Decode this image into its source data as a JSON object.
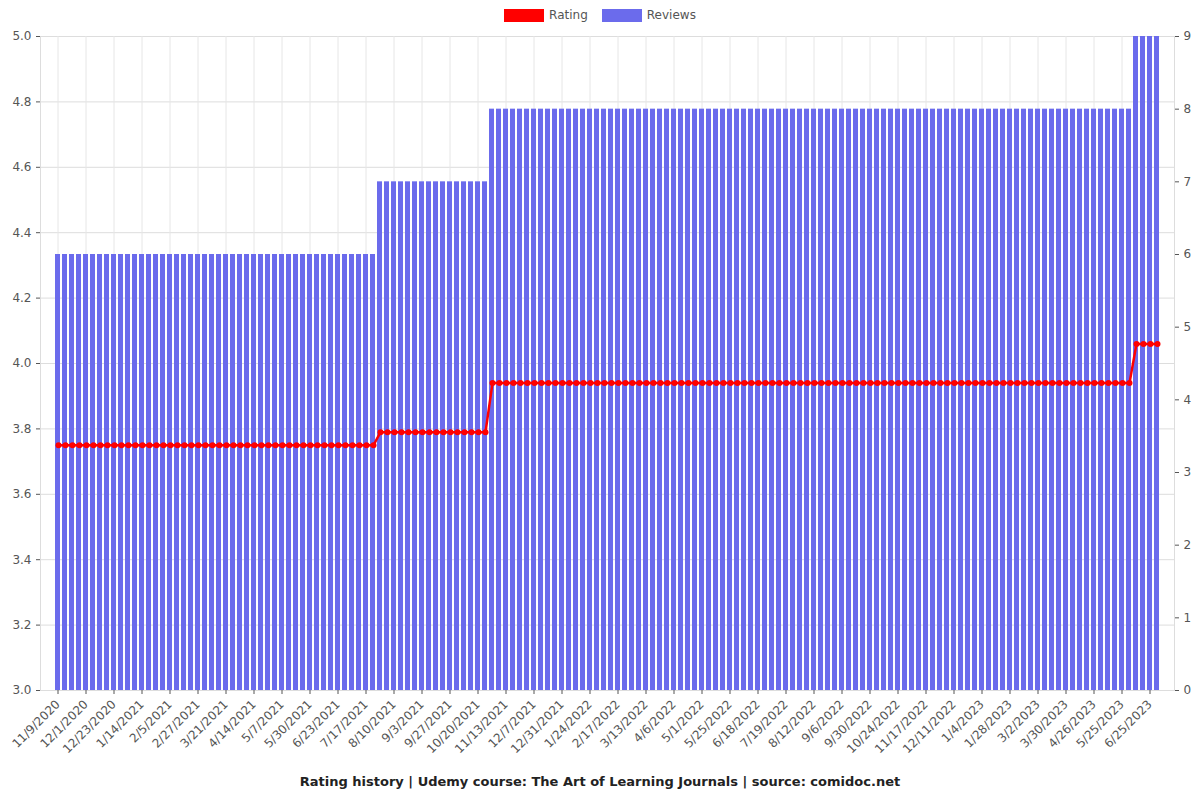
{
  "chart_data": {
    "type": "bar",
    "title": "Rating history | Udemy course: The Art of Learning Journals | source: comidoc.net",
    "categories": [
      "11/9/2020",
      null,
      null,
      null,
      "12/1/2020",
      null,
      null,
      null,
      "12/23/2020",
      null,
      null,
      null,
      "1/14/2021",
      null,
      null,
      null,
      "2/5/2021",
      null,
      null,
      null,
      "2/27/2021",
      null,
      null,
      null,
      "3/21/2021",
      null,
      null,
      null,
      "4/14/2021",
      null,
      null,
      null,
      "5/7/2021",
      null,
      null,
      null,
      "5/30/2021",
      null,
      null,
      null,
      "6/23/2021",
      null,
      null,
      null,
      "7/17/2021",
      null,
      null,
      null,
      "8/10/2021",
      null,
      null,
      null,
      "9/3/2021",
      null,
      null,
      null,
      "9/27/2021",
      null,
      null,
      null,
      "10/20/2021",
      null,
      null,
      null,
      "11/13/2021",
      null,
      null,
      null,
      "12/7/2021",
      null,
      null,
      null,
      "12/31/2021",
      null,
      null,
      null,
      "1/24/2022",
      null,
      null,
      null,
      "2/17/2022",
      null,
      null,
      null,
      "3/13/2022",
      null,
      null,
      null,
      "4/6/2022",
      null,
      null,
      null,
      "5/1/2022",
      null,
      null,
      null,
      "5/25/2022",
      null,
      null,
      null,
      "6/18/2022",
      null,
      null,
      null,
      "7/19/2022",
      null,
      null,
      null,
      "8/12/2022",
      null,
      null,
      null,
      "9/6/2022",
      null,
      null,
      null,
      "9/30/2022",
      null,
      null,
      null,
      "10/24/2022",
      null,
      null,
      null,
      "11/17/2022",
      null,
      null,
      null,
      "12/11/2022",
      null,
      null,
      null,
      "1/4/2023",
      null,
      null,
      null,
      "1/28/2023",
      null,
      null,
      null,
      "3/2/2023",
      null,
      null,
      null,
      "3/30/2023",
      null,
      null,
      null,
      "4/26/2023",
      null,
      null,
      null,
      "5/25/2023",
      null,
      null,
      null,
      "6/25/2023",
      null
    ],
    "series": [
      {
        "name": "Rating",
        "type": "line",
        "color": "#ff0000",
        "marker": "circle",
        "values": [
          3.75,
          3.75,
          3.75,
          3.75,
          3.75,
          3.75,
          3.75,
          3.75,
          3.75,
          3.75,
          3.75,
          3.75,
          3.75,
          3.75,
          3.75,
          3.75,
          3.75,
          3.75,
          3.75,
          3.75,
          3.75,
          3.75,
          3.75,
          3.75,
          3.75,
          3.75,
          3.75,
          3.75,
          3.75,
          3.75,
          3.75,
          3.75,
          3.75,
          3.75,
          3.75,
          3.75,
          3.75,
          3.75,
          3.75,
          3.75,
          3.75,
          3.75,
          3.75,
          3.75,
          3.75,
          3.75,
          3.79,
          3.79,
          3.79,
          3.79,
          3.79,
          3.79,
          3.79,
          3.79,
          3.79,
          3.79,
          3.79,
          3.79,
          3.79,
          3.79,
          3.79,
          3.79,
          3.94,
          3.94,
          3.94,
          3.94,
          3.94,
          3.94,
          3.94,
          3.94,
          3.94,
          3.94,
          3.94,
          3.94,
          3.94,
          3.94,
          3.94,
          3.94,
          3.94,
          3.94,
          3.94,
          3.94,
          3.94,
          3.94,
          3.94,
          3.94,
          3.94,
          3.94,
          3.94,
          3.94,
          3.94,
          3.94,
          3.94,
          3.94,
          3.94,
          3.94,
          3.94,
          3.94,
          3.94,
          3.94,
          3.94,
          3.94,
          3.94,
          3.94,
          3.94,
          3.94,
          3.94,
          3.94,
          3.94,
          3.94,
          3.94,
          3.94,
          3.94,
          3.94,
          3.94,
          3.94,
          3.94,
          3.94,
          3.94,
          3.94,
          3.94,
          3.94,
          3.94,
          3.94,
          3.94,
          3.94,
          3.94,
          3.94,
          3.94,
          3.94,
          3.94,
          3.94,
          3.94,
          3.94,
          3.94,
          3.94,
          3.94,
          3.94,
          3.94,
          3.94,
          3.94,
          3.94,
          3.94,
          3.94,
          3.94,
          3.94,
          3.94,
          3.94,
          3.94,
          3.94,
          3.94,
          3.94,
          3.94,
          3.94,
          4.06,
          4.06,
          4.06,
          4.06
        ]
      },
      {
        "name": "Reviews",
        "type": "bar",
        "color": "#6b6bec",
        "axis": "y2",
        "values": [
          6,
          6,
          6,
          6,
          6,
          6,
          6,
          6,
          6,
          6,
          6,
          6,
          6,
          6,
          6,
          6,
          6,
          6,
          6,
          6,
          6,
          6,
          6,
          6,
          6,
          6,
          6,
          6,
          6,
          6,
          6,
          6,
          6,
          6,
          6,
          6,
          6,
          6,
          6,
          6,
          6,
          6,
          6,
          6,
          6,
          6,
          7,
          7,
          7,
          7,
          7,
          7,
          7,
          7,
          7,
          7,
          7,
          7,
          7,
          7,
          7,
          7,
          8,
          8,
          8,
          8,
          8,
          8,
          8,
          8,
          8,
          8,
          8,
          8,
          8,
          8,
          8,
          8,
          8,
          8,
          8,
          8,
          8,
          8,
          8,
          8,
          8,
          8,
          8,
          8,
          8,
          8,
          8,
          8,
          8,
          8,
          8,
          8,
          8,
          8,
          8,
          8,
          8,
          8,
          8,
          8,
          8,
          8,
          8,
          8,
          8,
          8,
          8,
          8,
          8,
          8,
          8,
          8,
          8,
          8,
          8,
          8,
          8,
          8,
          8,
          8,
          8,
          8,
          8,
          8,
          8,
          8,
          8,
          8,
          8,
          8,
          8,
          8,
          8,
          8,
          8,
          8,
          8,
          8,
          8,
          8,
          8,
          8,
          8,
          8,
          8,
          8,
          8,
          8,
          9,
          9,
          9,
          9
        ]
      }
    ],
    "ylim": [
      3,
      5
    ],
    "yticks": [
      {
        "value": 3,
        "label": "3.0"
      },
      3.2,
      3.4,
      3.6,
      3.8,
      {
        "value": 4,
        "label": "4.0"
      },
      4.2,
      4.4,
      4.6,
      4.8,
      {
        "value": 5,
        "label": "5.0"
      }
    ],
    "y2lim": [
      0,
      9
    ],
    "y2ticks": [
      0,
      1,
      2,
      3,
      4,
      5,
      6,
      7,
      8,
      9
    ],
    "grid": true,
    "legend": "top"
  }
}
